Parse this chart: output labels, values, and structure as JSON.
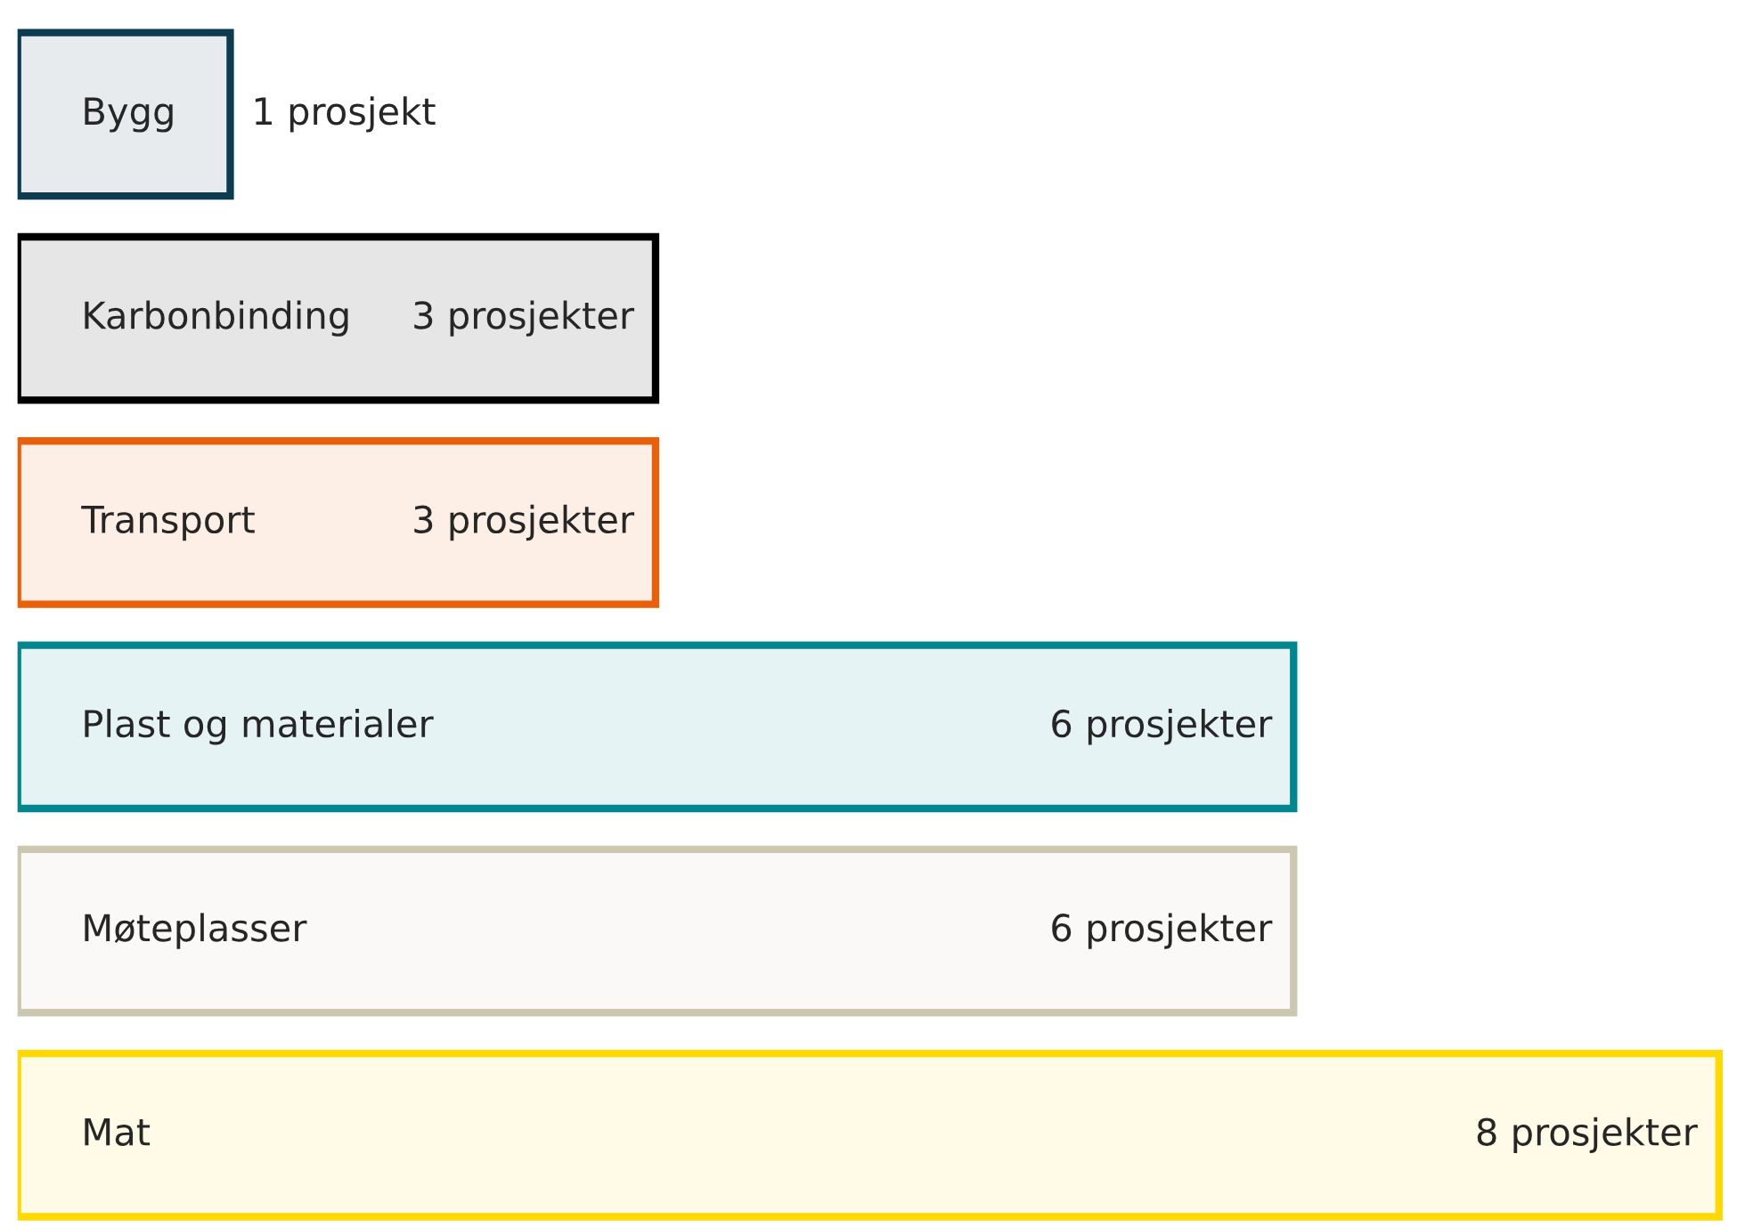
{
  "chart_data": {
    "type": "bar",
    "orientation": "horizontal",
    "categories": [
      "Bygg",
      "Karbonbinding",
      "Transport",
      "Plast og materialer",
      "Møteplasser",
      "Mat"
    ],
    "values": [
      1,
      3,
      3,
      6,
      6,
      8
    ],
    "value_labels": [
      "1 prosjekt",
      "3 prosjekter",
      "3 prosjekter",
      "6 prosjekter",
      "6 prosjekter",
      "8 prosjekter"
    ],
    "colors": [
      "#0d3b4f",
      "#000000",
      "#e8600a",
      "#00868e",
      "#cbc7b0",
      "#ffd900"
    ],
    "grid": false,
    "legend": false,
    "tick_labels": false
  }
}
